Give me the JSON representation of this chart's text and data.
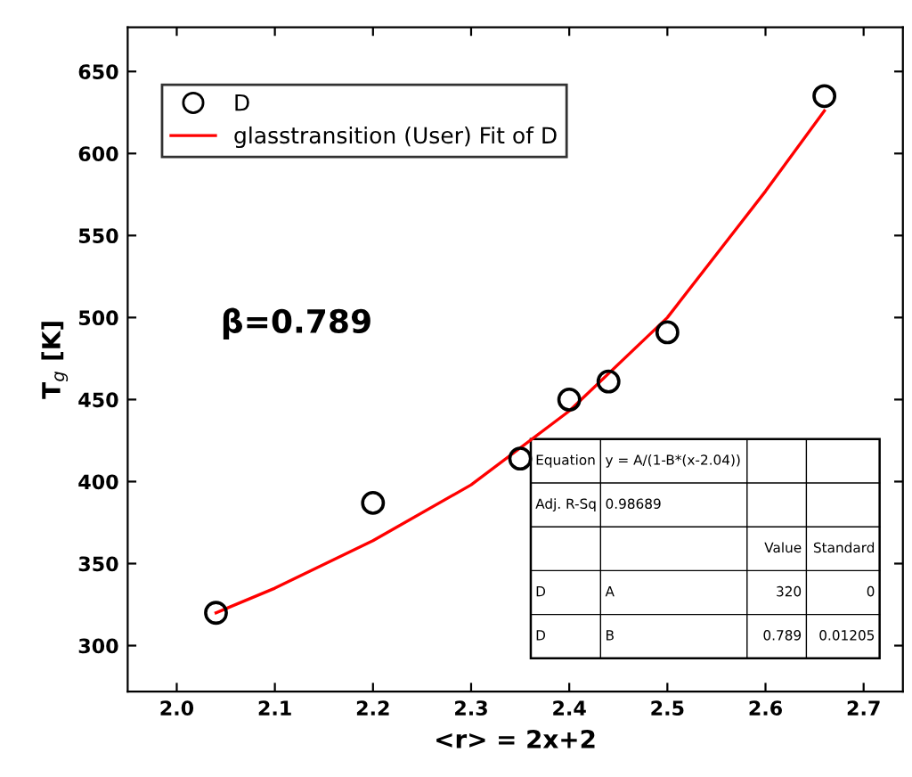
{
  "chart_data": {
    "type": "scatter",
    "xlabel": "<r> = 2x+2",
    "ylabel": "T$_{g}$ [K]",
    "xlim": [
      1.95,
      2.74
    ],
    "ylim": [
      272,
      677
    ],
    "xticks": [
      {
        "value": 2.0,
        "label": "2.0"
      },
      2.1,
      2.2,
      2.3,
      2.4,
      2.5,
      2.6,
      2.7
    ],
    "yticks": [
      300,
      350,
      400,
      450,
      500,
      550,
      600,
      650
    ],
    "legend": "top left",
    "grid": false,
    "series": [
      {
        "name": "D",
        "color": "#000000",
        "marker": "circle",
        "x": [
          2.04,
          2.2,
          2.35,
          2.4,
          2.44,
          2.5,
          2.66
        ],
        "values": [
          320,
          387,
          414,
          450,
          461,
          491,
          635
        ]
      },
      {
        "name": "glasstransition (User) Fit of D",
        "type": "line",
        "color": "#ff0000",
        "marker": "none",
        "line_style": "solid",
        "x": [
          2.04,
          2.1,
          2.2,
          2.3,
          2.4,
          2.5,
          2.6,
          2.66
        ],
        "values": [
          320,
          335,
          364,
          398,
          443,
          500,
          577,
          626
        ]
      }
    ],
    "annotations": [
      "β=0.789",
      "Equation",
      "y = A/(1-B*(x-2.04))",
      "Adj. R-Sq",
      "0.98689",
      "Value",
      "Standard",
      "D",
      "A",
      "320",
      "0",
      "D",
      "B",
      "0.789",
      "0.01205"
    ]
  }
}
